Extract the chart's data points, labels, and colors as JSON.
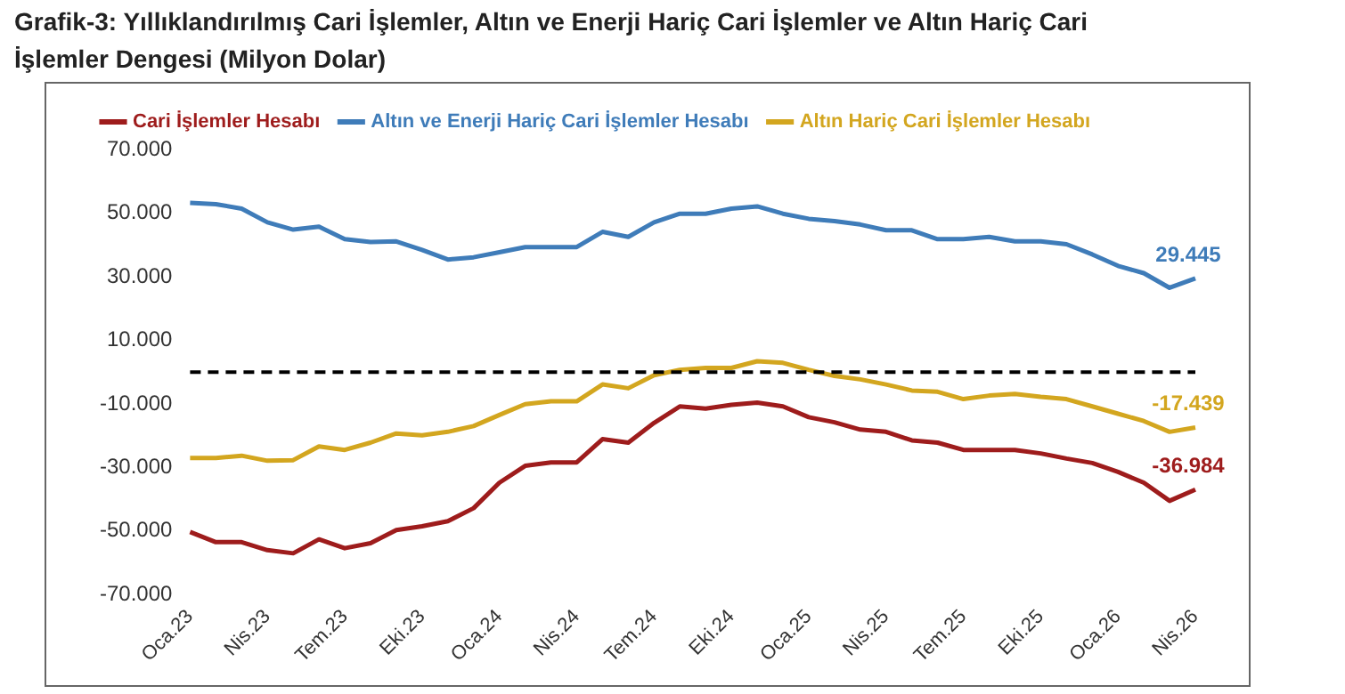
{
  "chart_data": {
    "type": "line",
    "title": "Grafik-3: Yıllıklandırılmış Cari İşlemler, Altın ve Enerji Hariç Cari İşlemler ve Altın Hariç Cari İşlemler Dengesi (Milyon Dolar)",
    "categories": [
      "Oca.23",
      null,
      null,
      "Nis.23",
      null,
      null,
      "Tem.23",
      null,
      null,
      "Eki.23",
      null,
      null,
      "Oca.24",
      null,
      null,
      "Nis.24",
      null,
      null,
      "Tem.24",
      null,
      null,
      "Eki.24",
      null,
      null,
      "Oca.25",
      null,
      null,
      "Nis.25",
      null,
      null,
      "Tem.25",
      null,
      null,
      "Eki.25",
      null,
      null,
      "Oca.26",
      null,
      null,
      "Nis.26"
    ],
    "series": [
      {
        "name": "Cari İşlemler Hesabı",
        "color": "#9e1c1c",
        "values": [
          -50300,
          -53500,
          -53500,
          -56000,
          -57000,
          -52600,
          -55400,
          -53800,
          -49700,
          -48500,
          -46900,
          -42800,
          -34800,
          -29500,
          -28400,
          -28400,
          -21100,
          -22200,
          -16000,
          -10800,
          -11500,
          -10300,
          -9600,
          -10800,
          -14200,
          -15800,
          -18100,
          -18800,
          -21500,
          -22200,
          -24500,
          -24500,
          -24500,
          -25600,
          -27200,
          -28600,
          -31400,
          -34800,
          -40500,
          -36984
        ],
        "value_labels": [
          null,
          null,
          null,
          null,
          null,
          null,
          null,
          null,
          null,
          null,
          null,
          null,
          null,
          null,
          null,
          null,
          null,
          null,
          null,
          null,
          null,
          null,
          null,
          null,
          null,
          null,
          null,
          null,
          null,
          null,
          null,
          null,
          null,
          null,
          null,
          null,
          null,
          null,
          null,
          "-36.984"
        ]
      },
      {
        "name": "Altın ve Enerji Hariç Cari İşlemler Hesabı",
        "color": "#3f7cb9",
        "values": [
          53200,
          52800,
          51400,
          47100,
          44800,
          45700,
          41800,
          40900,
          41100,
          38400,
          35400,
          36100,
          37700,
          39300,
          39300,
          39300,
          44100,
          42500,
          47100,
          49800,
          49800,
          51400,
          52100,
          49800,
          48200,
          47500,
          46400,
          44600,
          44600,
          41800,
          41800,
          42500,
          41100,
          41100,
          40200,
          37000,
          33400,
          31100,
          26500,
          29445
        ],
        "value_labels": [
          null,
          null,
          null,
          null,
          null,
          null,
          null,
          null,
          null,
          null,
          null,
          null,
          null,
          null,
          null,
          null,
          null,
          null,
          null,
          null,
          null,
          null,
          null,
          null,
          null,
          null,
          null,
          null,
          null,
          null,
          null,
          null,
          null,
          null,
          null,
          null,
          null,
          null,
          null,
          "29.445"
        ]
      },
      {
        "name": "Altın Hariç Cari İşlemler Hesabı",
        "color": "#d3a61f",
        "values": [
          -27000,
          -27000,
          -26300,
          -27900,
          -27700,
          -23400,
          -24500,
          -22200,
          -19300,
          -19900,
          -18800,
          -17000,
          -13500,
          -10100,
          -9200,
          -9200,
          -3900,
          -5100,
          -1000,
          700,
          1300,
          1300,
          3400,
          2900,
          700,
          -1200,
          -2300,
          -3900,
          -5800,
          -6200,
          -8500,
          -7400,
          -6900,
          -7800,
          -8500,
          -10800,
          -13100,
          -15400,
          -18800,
          -17439
        ],
        "value_labels": [
          null,
          null,
          null,
          null,
          null,
          null,
          null,
          null,
          null,
          null,
          null,
          null,
          null,
          null,
          null,
          null,
          null,
          null,
          null,
          null,
          null,
          null,
          null,
          null,
          null,
          null,
          null,
          null,
          null,
          null,
          null,
          null,
          null,
          null,
          null,
          null,
          null,
          null,
          null,
          "-17.439"
        ]
      }
    ],
    "ylim": [
      -70000,
      70000
    ],
    "yticks": [
      {
        "value": -70000,
        "label": "-70.000"
      },
      {
        "value": -50000,
        "label": "-50.000"
      },
      {
        "value": -30000,
        "label": "-30.000"
      },
      {
        "value": -10000,
        "label": "-10.000"
      },
      {
        "value": 10000,
        "label": "10.000"
      },
      {
        "value": 30000,
        "label": "30.000"
      },
      {
        "value": 50000,
        "label": "50.000"
      },
      {
        "value": 70000,
        "label": "70.000"
      }
    ],
    "ref_lines": [
      {
        "axis": "y",
        "value": 0,
        "color": "#000000",
        "line_style": "dashed"
      }
    ],
    "legend": "top",
    "marker": "none"
  }
}
